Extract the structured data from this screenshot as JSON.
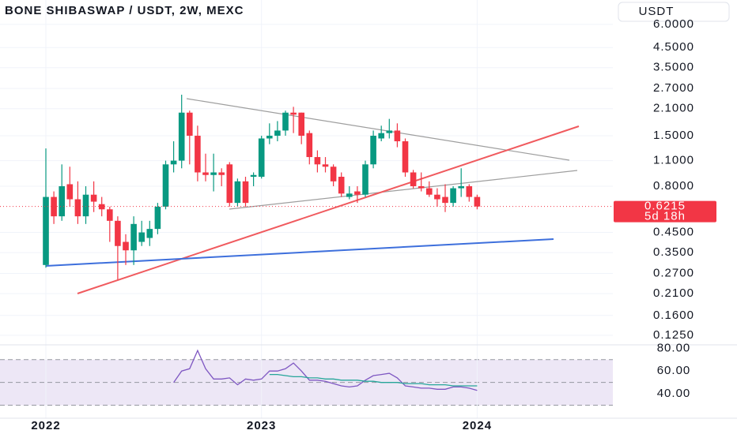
{
  "chart_data": [
    {
      "type": "candlestick",
      "title": "BONE SHIBASWAP / USDT, 2W, MEXC",
      "currency": "USDT",
      "countdown": "5d 18h",
      "categories": [
        "2022",
        null,
        null,
        null,
        null,
        null,
        null,
        null,
        null,
        null,
        null,
        null,
        null,
        null,
        null,
        null,
        null,
        null,
        null,
        null,
        null,
        null,
        null,
        null,
        null,
        null,
        null,
        "2023",
        null,
        null,
        null,
        null,
        null,
        null,
        null,
        null,
        null,
        null,
        null,
        null,
        null,
        null,
        null,
        null,
        null,
        null,
        null,
        null,
        null,
        null,
        null,
        null,
        null,
        null,
        "2024"
      ],
      "open": [
        0.3,
        0.7,
        0.55,
        0.82,
        0.68,
        0.55,
        0.72,
        0.64,
        0.6,
        0.52,
        0.4,
        0.36,
        0.4,
        0.42,
        0.47,
        0.62,
        1.05,
        1.1,
        2.0,
        1.5,
        0.95,
        0.92,
        0.95,
        1.05,
        0.65,
        0.85,
        0.9,
        0.9,
        1.45,
        1.5,
        1.6,
        2.0,
        2.0,
        1.55,
        1.15,
        1.05,
        1.02,
        0.9,
        0.7,
        0.75,
        0.72,
        1.05,
        1.45,
        1.55,
        1.6,
        1.4,
        0.95,
        0.8,
        0.78,
        0.72,
        0.7,
        0.65,
        0.78,
        0.8,
        0.7
      ],
      "high": [
        1.28,
        0.75,
        1.05,
        1.02,
        0.85,
        0.8,
        0.85,
        0.7,
        0.62,
        0.55,
        0.44,
        0.55,
        0.52,
        0.52,
        0.65,
        1.1,
        1.4,
        2.5,
        2.05,
        1.7,
        1.2,
        1.2,
        1.0,
        1.08,
        0.88,
        0.9,
        0.95,
        1.5,
        1.75,
        1.8,
        2.05,
        2.15,
        2.0,
        1.6,
        1.25,
        1.15,
        1.05,
        0.95,
        0.8,
        0.8,
        1.1,
        1.6,
        1.7,
        1.85,
        1.75,
        1.45,
        0.98,
        0.95,
        0.85,
        0.78,
        0.82,
        0.8,
        1.0,
        0.82,
        0.72
      ],
      "low": [
        0.29,
        0.5,
        0.52,
        0.62,
        0.5,
        0.5,
        0.58,
        0.55,
        0.4,
        0.25,
        0.3,
        0.3,
        0.38,
        0.38,
        0.44,
        0.6,
        0.95,
        1.0,
        1.05,
        0.85,
        0.85,
        0.75,
        0.8,
        0.62,
        0.62,
        0.62,
        0.8,
        0.88,
        1.35,
        1.4,
        1.5,
        1.55,
        1.35,
        1.05,
        0.95,
        0.95,
        0.8,
        0.7,
        0.68,
        0.65,
        0.7,
        1.0,
        1.4,
        1.45,
        1.3,
        0.9,
        0.78,
        0.75,
        0.7,
        0.62,
        0.58,
        0.62,
        0.7,
        0.66,
        0.6
      ],
      "close": [
        0.7,
        0.55,
        0.8,
        0.68,
        0.55,
        0.72,
        0.66,
        0.6,
        0.52,
        0.38,
        0.36,
        0.5,
        0.45,
        0.47,
        0.62,
        1.05,
        1.1,
        2.0,
        1.5,
        0.95,
        0.92,
        0.95,
        0.92,
        0.65,
        0.85,
        0.65,
        0.92,
        1.45,
        1.5,
        1.6,
        2.0,
        1.95,
        1.5,
        1.15,
        1.05,
        1.02,
        0.85,
        0.73,
        0.73,
        0.72,
        1.05,
        1.5,
        1.55,
        1.6,
        1.4,
        0.95,
        0.8,
        0.78,
        0.72,
        0.68,
        0.65,
        0.78,
        0.8,
        0.7,
        0.6215
      ],
      "up_color": "#089981",
      "down_color": "#f23645",
      "log_scale": true,
      "ylim": [
        0.111,
        8.13
      ],
      "yticks": [
        {
          "value": 6,
          "label": "6.0000"
        },
        {
          "value": 4.5,
          "label": "4.5000"
        },
        {
          "value": 3.5,
          "label": "3.5000"
        },
        {
          "value": 2.7,
          "label": "2.7000"
        },
        {
          "value": 2.1,
          "label": "2.1000"
        },
        {
          "value": 1.5,
          "label": "1.5000"
        },
        {
          "value": 1.1,
          "label": "1.1000"
        },
        {
          "value": 0.8,
          "label": "0.8000"
        },
        {
          "value": 0.45,
          "label": "0.4500"
        },
        {
          "value": 0.35,
          "label": "0.3500"
        },
        {
          "value": 0.27,
          "label": "0.2700"
        },
        {
          "value": 0.21,
          "label": "0.2100"
        },
        {
          "value": 0.16,
          "label": "0.1600"
        },
        {
          "value": 0.125,
          "label": "0.1250"
        }
      ],
      "grid": true
    },
    {
      "type": "line",
      "ylim": [
        20,
        83
      ],
      "yticks": [
        {
          "value": 80,
          "label": "80.00"
        },
        {
          "value": 60,
          "label": "60.00"
        },
        {
          "value": 40,
          "label": "40.00"
        }
      ],
      "bands": [
        70,
        50,
        30
      ],
      "series": [
        {
          "color": "#7e57c2",
          "values": [
            null,
            null,
            null,
            null,
            null,
            null,
            null,
            null,
            null,
            null,
            null,
            null,
            null,
            null,
            null,
            null,
            50,
            60,
            62,
            78,
            62,
            53,
            53,
            54,
            48,
            53,
            52,
            53,
            60,
            60,
            62,
            67,
            60,
            52,
            52,
            51,
            49,
            47,
            46,
            47,
            52,
            56,
            57,
            58,
            54,
            47,
            46,
            45,
            45,
            44,
            44,
            46,
            46,
            45,
            43
          ]
        },
        {
          "color": "#26a69a",
          "values": [
            null,
            null,
            null,
            null,
            null,
            null,
            null,
            null,
            null,
            null,
            null,
            null,
            null,
            null,
            null,
            null,
            null,
            null,
            null,
            null,
            null,
            null,
            null,
            null,
            null,
            null,
            null,
            null,
            57,
            57,
            56,
            55,
            55,
            54,
            54,
            53,
            53,
            52,
            52,
            52,
            51,
            51,
            50,
            50,
            50,
            49,
            49,
            49,
            48,
            48,
            48,
            47,
            47,
            47,
            47
          ]
        }
      ]
    }
  ]
}
